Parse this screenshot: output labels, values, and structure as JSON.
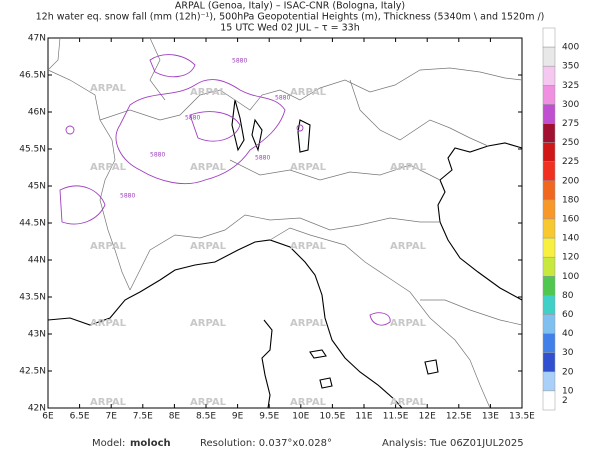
{
  "header": {
    "line1": "ARPAL (Genoa, Italy)  –  ISAC-CNR (Bologna, Italy)",
    "line2": "12h water eq. snow fall (mm (12h)⁻¹), 500hPa Geopotential Heights (m), Thickness (5340m \\ and 1520m /)",
    "line3": "15 UTC Wed 02 JUL  –  τ = 33h"
  },
  "map": {
    "lat_labels": [
      "47N",
      "46.5N",
      "46N",
      "45.5N",
      "45N",
      "44.5N",
      "44N",
      "43.5N",
      "43N",
      "42.5N",
      "42N"
    ],
    "lon_labels": [
      "6E",
      "6.5E",
      "7E",
      "7.5E",
      "8E",
      "8.5E",
      "9E",
      "9.5E",
      "10E",
      "10.5E",
      "11E",
      "11.5E",
      "12E",
      "12.5E",
      "13E",
      "13.5E"
    ],
    "watermark": "ARPAL",
    "contour_label": "5880"
  },
  "colorbar": {
    "labels": [
      "400",
      "350",
      "325",
      "300",
      "275",
      "250",
      "225",
      "200",
      "180",
      "160",
      "140",
      "120",
      "100",
      "80",
      "60",
      "40",
      "30",
      "20",
      "10",
      "2"
    ]
  },
  "footer": {
    "model_label": "Model:",
    "model": "moloch",
    "resolution": "Resolution: 0.037°x0.028°",
    "analysis": "Analysis: Tue 06Z01JUL2025"
  }
}
